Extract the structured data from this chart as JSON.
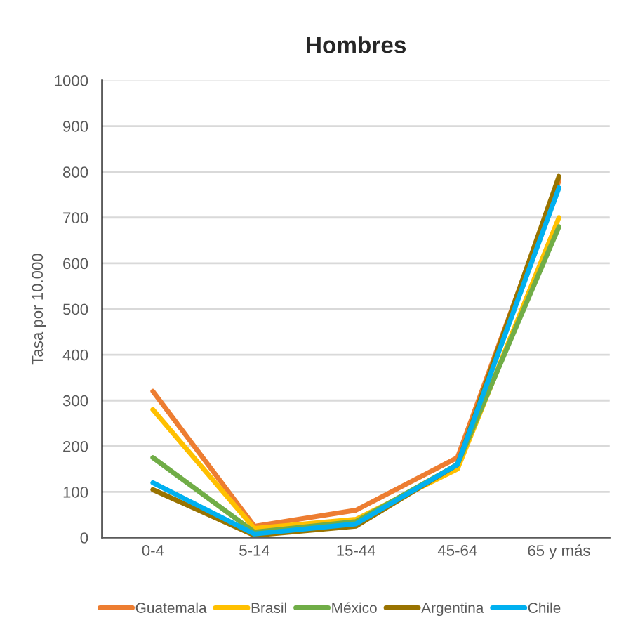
{
  "chart_data": {
    "type": "line",
    "title": "Hombres",
    "ylabel": "Tasa por 10.000",
    "categories": [
      "0-4",
      "5-14",
      "15-44",
      "45-64",
      "65 y más"
    ],
    "series": [
      {
        "name": "Guatemala",
        "color": "#ed7d31",
        "values": [
          320,
          25,
          60,
          175,
          780
        ]
      },
      {
        "name": "Brasil",
        "color": "#ffc000",
        "values": [
          280,
          20,
          40,
          150,
          700
        ]
      },
      {
        "name": "México",
        "color": "#70ad47",
        "values": [
          175,
          12,
          35,
          160,
          680
        ]
      },
      {
        "name": "Argentina",
        "color": "#997300",
        "values": [
          105,
          5,
          25,
          160,
          790
        ]
      },
      {
        "name": "Chile",
        "color": "#00b0f0",
        "values": [
          120,
          8,
          30,
          160,
          765
        ]
      }
    ],
    "ylim": [
      0,
      1000
    ],
    "yticks": [
      0,
      100,
      200,
      300,
      400,
      500,
      600,
      700,
      800,
      900,
      1000
    ],
    "grid": "y",
    "legend": "bottom",
    "marker": "none",
    "line_style": "solid"
  }
}
